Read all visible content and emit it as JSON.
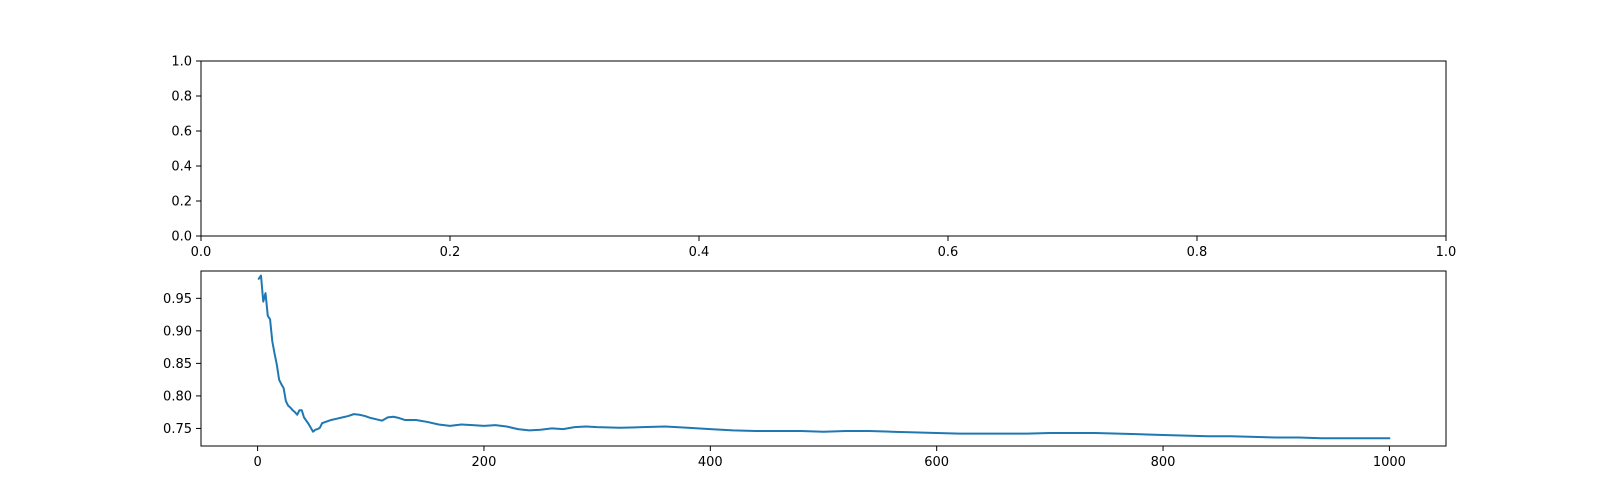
{
  "colors": {
    "line": "#1f77b4",
    "axes": "#000000",
    "background": "#ffffff"
  },
  "chart_data": [
    {
      "type": "line",
      "title": "",
      "xlabel": "",
      "ylabel": "",
      "xlim": [
        0.0,
        1.0
      ],
      "ylim": [
        0.0,
        1.0
      ],
      "xticks": [
        "0.0",
        "0.2",
        "0.4",
        "0.6",
        "0.8",
        "1.0"
      ],
      "yticks": [
        "0.0",
        "0.2",
        "0.4",
        "0.6",
        "0.8",
        "1.0"
      ],
      "grid": false,
      "series": []
    },
    {
      "type": "line",
      "title": "",
      "xlabel": "",
      "ylabel": "",
      "xlim": [
        -50,
        1050
      ],
      "ylim": [
        0.723,
        0.992
      ],
      "xticks": [
        "0",
        "200",
        "400",
        "600",
        "800",
        "1000"
      ],
      "yticks": [
        "0.75",
        "0.80",
        "0.85",
        "0.90",
        "0.95"
      ],
      "grid": false,
      "series": [
        {
          "color": "#1f77b4",
          "x": [
            1,
            3,
            5,
            7,
            9,
            11,
            13,
            15,
            17,
            19,
            21,
            23,
            25,
            27,
            29,
            31,
            33,
            35,
            37,
            39,
            41,
            43,
            45,
            47,
            49,
            51,
            53,
            55,
            57,
            60,
            65,
            70,
            75,
            80,
            85,
            90,
            95,
            100,
            105,
            110,
            115,
            120,
            125,
            130,
            140,
            150,
            160,
            170,
            180,
            190,
            200,
            210,
            220,
            230,
            240,
            250,
            260,
            270,
            280,
            290,
            300,
            320,
            340,
            360,
            380,
            400,
            420,
            440,
            460,
            480,
            500,
            520,
            540,
            560,
            580,
            600,
            620,
            640,
            660,
            680,
            700,
            720,
            740,
            760,
            780,
            800,
            820,
            840,
            860,
            880,
            900,
            920,
            940,
            960,
            980,
            1000
          ],
          "y": [
            0.98,
            0.985,
            0.945,
            0.958,
            0.923,
            0.918,
            0.884,
            0.865,
            0.848,
            0.825,
            0.818,
            0.812,
            0.792,
            0.785,
            0.782,
            0.778,
            0.775,
            0.771,
            0.778,
            0.778,
            0.767,
            0.762,
            0.757,
            0.751,
            0.745,
            0.748,
            0.749,
            0.751,
            0.758,
            0.76,
            0.763,
            0.765,
            0.767,
            0.769,
            0.772,
            0.771,
            0.769,
            0.766,
            0.764,
            0.762,
            0.767,
            0.768,
            0.766,
            0.763,
            0.763,
            0.76,
            0.756,
            0.754,
            0.756,
            0.755,
            0.754,
            0.755,
            0.753,
            0.749,
            0.747,
            0.748,
            0.75,
            0.749,
            0.752,
            0.753,
            0.752,
            0.751,
            0.752,
            0.753,
            0.751,
            0.749,
            0.747,
            0.746,
            0.746,
            0.746,
            0.745,
            0.746,
            0.746,
            0.745,
            0.744,
            0.743,
            0.742,
            0.742,
            0.742,
            0.742,
            0.743,
            0.743,
            0.743,
            0.742,
            0.741,
            0.74,
            0.739,
            0.738,
            0.738,
            0.737,
            0.736,
            0.736,
            0.735,
            0.735,
            0.735,
            0.735
          ]
        }
      ]
    }
  ]
}
